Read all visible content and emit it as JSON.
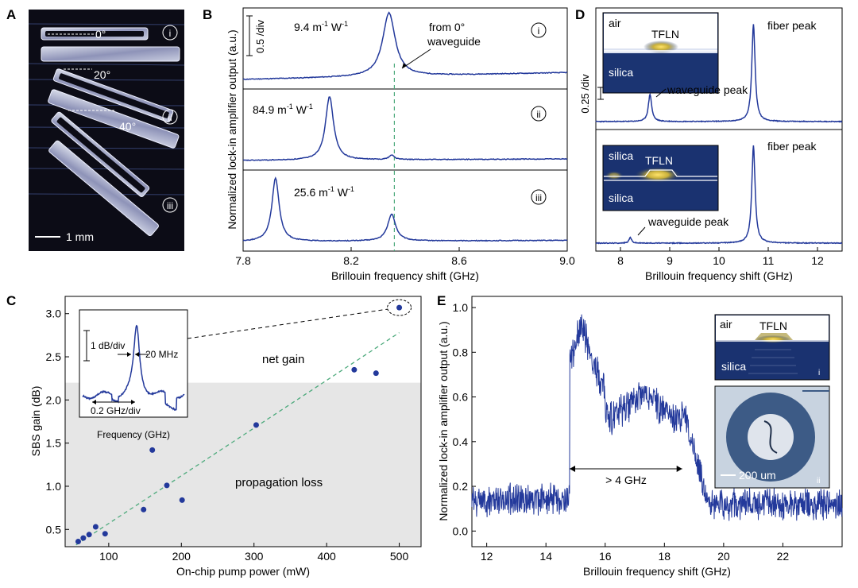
{
  "panels": {
    "A": {
      "label": "A",
      "angles": [
        "0°",
        "20°",
        "40°"
      ],
      "markers": [
        "i",
        "ii",
        "iii"
      ],
      "scalebar": "1 mm"
    },
    "B": {
      "label": "B",
      "ylabel": "Normalized lock-in amplifier output (a.u.)",
      "xlabel": "Brillouin frequency shift (GHz)",
      "scale_text": "0.5 /div",
      "arrow_label_1": "from 0°",
      "arrow_label_2": "waveguide",
      "gains": [
        {
          "value": "9.4",
          "marker": "i"
        },
        {
          "value": "84.9",
          "marker": "ii"
        },
        {
          "value": "25.6",
          "marker": "iii"
        }
      ]
    },
    "D": {
      "label": "D",
      "xlabel": "Brillouin frequency shift (GHz)",
      "scale_text": "0.25 /div",
      "fiber_peak": "fiber peak",
      "waveguide_peak": "waveguide peak",
      "inset_top": {
        "air": "air",
        "tfln": "TFLN",
        "silica": "silica"
      },
      "inset_bottom": {
        "silica_top": "silica",
        "tfln": "TFLN",
        "silica_bottom": "silica"
      }
    },
    "C": {
      "label": "C",
      "net_gain": "net gain",
      "propagation_loss": "propagation loss",
      "inset": {
        "scale_y": "1 dB/div",
        "width": "20 MHz",
        "scale_x": "0.2 GHz/div",
        "xlabel": "Frequency (GHz)"
      }
    },
    "E": {
      "label": "E",
      "bandwidth": "> 4 GHz",
      "inset_i": {
        "air": "air",
        "tfln": "TFLN",
        "silica": "silica",
        "marker": "i"
      },
      "inset_ii": {
        "scalebar": "200 um",
        "marker": "ii"
      }
    }
  },
  "chart_data": [
    {
      "id": "B",
      "type": "line",
      "title": "",
      "xlabel": "Brillouin frequency shift (GHz)",
      "ylabel": "Normalized lock-in amplifier output (a.u.)",
      "xlim": [
        7.8,
        9.0
      ],
      "xticks": [
        7.8,
        8.2,
        8.6,
        9.0
      ],
      "xtick_labels": [
        "7.8",
        "8.2",
        "8.6",
        "9.0"
      ],
      "dashed_line_x": 8.36,
      "series": [
        {
          "name": "i",
          "peaks": [
            {
              "x": 8.34,
              "height": 1.0,
              "width": 0.028
            }
          ],
          "baseline_rise": 0.18
        },
        {
          "name": "ii",
          "peaks": [
            {
              "x": 8.12,
              "height": 1.0,
              "width": 0.018
            },
            {
              "x": 8.35,
              "height": 0.07,
              "width": 0.012
            }
          ],
          "baseline_rise": 0.04
        },
        {
          "name": "iii",
          "peaks": [
            {
              "x": 7.92,
              "height": 1.0,
              "width": 0.016
            },
            {
              "x": 8.35,
              "height": 0.42,
              "width": 0.018
            }
          ],
          "baseline_rise": 0.03
        }
      ]
    },
    {
      "id": "D",
      "type": "line",
      "title": "",
      "xlabel": "Brillouin frequency shift (GHz)",
      "ylabel": "",
      "xlim": [
        7.5,
        12.5
      ],
      "xticks": [
        8,
        9,
        10,
        11,
        12
      ],
      "xtick_labels": [
        "8",
        "9",
        "10",
        "11",
        "12"
      ],
      "series": [
        {
          "name": "top",
          "peaks": [
            {
              "x": 8.6,
              "height": 0.28,
              "width": 0.04
            },
            {
              "x": 10.7,
              "height": 1.0,
              "width": 0.04
            }
          ]
        },
        {
          "name": "bottom",
          "peaks": [
            {
              "x": 8.2,
              "height": 0.06,
              "width": 0.03
            },
            {
              "x": 10.7,
              "height": 1.0,
              "width": 0.04
            }
          ]
        }
      ]
    },
    {
      "id": "C",
      "type": "scatter",
      "title": "",
      "xlabel": "On-chip pump power (mW)",
      "ylabel": "SBS gain (dB)",
      "xlim": [
        40,
        530
      ],
      "ylim": [
        0.3,
        3.2
      ],
      "xticks": [
        100,
        200,
        300,
        400,
        500
      ],
      "xtick_labels": [
        "100",
        "200",
        "300",
        "400",
        "500"
      ],
      "yticks": [
        0.5,
        1.0,
        1.5,
        2.0,
        2.5,
        3.0
      ],
      "ytick_labels": [
        "0.5",
        "1.0",
        "1.5",
        "2.0",
        "2.5",
        "3.0"
      ],
      "loss_threshold": 2.2,
      "fit": {
        "x": [
          55,
          500
        ],
        "y": [
          0.32,
          2.78
        ]
      },
      "points": [
        {
          "x": 58,
          "y": 0.36
        },
        {
          "x": 65,
          "y": 0.4
        },
        {
          "x": 73,
          "y": 0.44
        },
        {
          "x": 82,
          "y": 0.53
        },
        {
          "x": 95,
          "y": 0.45
        },
        {
          "x": 148,
          "y": 0.73
        },
        {
          "x": 160,
          "y": 1.42
        },
        {
          "x": 180,
          "y": 1.01
        },
        {
          "x": 201,
          "y": 0.84
        },
        {
          "x": 303,
          "y": 1.71
        },
        {
          "x": 438,
          "y": 2.35
        },
        {
          "x": 468,
          "y": 2.31
        },
        {
          "x": 500,
          "y": 3.07
        }
      ]
    },
    {
      "id": "E",
      "type": "line",
      "title": "",
      "xlabel": "Brillouin frequency shift (GHz)",
      "ylabel": "Normalized lock-in amplifier output (a.u.)",
      "xlim": [
        11.5,
        24.0
      ],
      "ylim": [
        -0.07,
        1.05
      ],
      "xticks": [
        12,
        14,
        16,
        18,
        20,
        22
      ],
      "xtick_labels": [
        "12",
        "14",
        "16",
        "18",
        "20",
        "22"
      ],
      "yticks": [
        0.0,
        0.2,
        0.4,
        0.6,
        0.8,
        1.0
      ],
      "ytick_labels": [
        "0.0",
        "0.2",
        "0.4",
        "0.6",
        "0.8",
        "1.0"
      ],
      "band_start": 14.8,
      "band_end": 18.6,
      "max_y": 1.0
    }
  ]
}
